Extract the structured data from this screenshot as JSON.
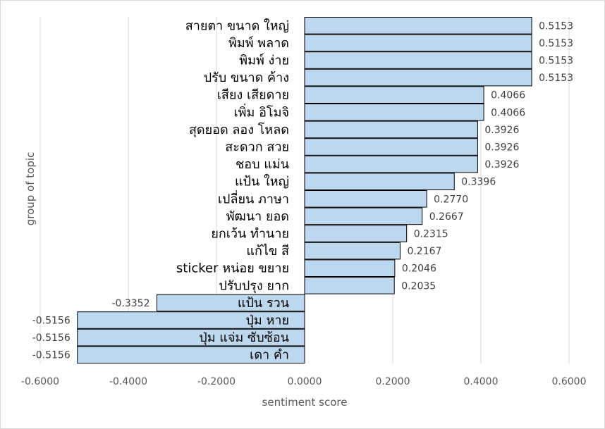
{
  "chart_data": {
    "type": "bar",
    "orientation": "horizontal",
    "categories": [
      "สายตา ขนาด ใหญ่",
      "พิมพ์ พลาด",
      "พิมพ์ ง่าย",
      "ปรับ ขนาด ค้าง",
      "เสียง เสียดาย",
      "เพิ่ม อิโมจิ",
      "สุดยอด ลอง โหลด",
      "สะดวก สวย",
      "ชอบ แม่น",
      "แป้น ใหญ่",
      "เปลี่ยน ภาษา",
      "พัฒนา ยอด",
      "ยกเว้น ทำนาย",
      "แก้ไข สี",
      "sticker หน่อย ขยาย",
      "ปรับปรุง ยาก",
      "แป้น รวน",
      "ปุ่ม หาย",
      "ปุ่ม แจ่ม ซับซ้อน",
      "เดา คำ"
    ],
    "values": [
      0.5153,
      0.5153,
      0.5153,
      0.5153,
      0.4066,
      0.4066,
      0.3926,
      0.3926,
      0.3926,
      0.3396,
      0.277,
      0.2667,
      0.2315,
      0.2167,
      0.2046,
      0.2035,
      -0.3352,
      -0.5156,
      -0.5156,
      -0.5156
    ],
    "value_labels": [
      "0.5153",
      "0.5153",
      "0.5153",
      "0.5153",
      "0.4066",
      "0.4066",
      "0.3926",
      "0.3926",
      "0.3926",
      "0.3396",
      "0.2770",
      "0.2667",
      "0.2315",
      "0.2167",
      "0.2046",
      "0.2035",
      "-0.3352",
      "-0.5156",
      "-0.5156",
      "-0.5156"
    ],
    "xlim": [
      -0.6,
      0.6
    ],
    "xticks": [
      -0.6,
      -0.4,
      -0.2,
      0.0,
      0.2,
      0.4,
      0.6
    ],
    "xtick_labels": [
      "-0.6000",
      "-0.4000",
      "-0.2000",
      "0.0000",
      "0.2000",
      "0.4000",
      "0.6000"
    ],
    "xlabel": "sentiment score",
    "ylabel": "group of topic",
    "grid": "vertical",
    "legend": "none",
    "bar_color": "#bdd7ee",
    "bar_edge_color": "#000000",
    "grid_color": "#d9d9d9"
  }
}
